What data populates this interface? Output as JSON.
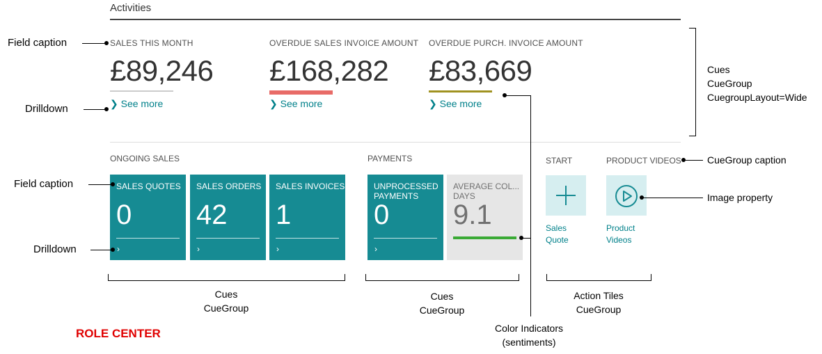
{
  "activities": {
    "title": "Activities",
    "wide_cues": [
      {
        "caption": "SALES THIS MONTH",
        "value": "£89,246",
        "link": "See more",
        "indicator_color": "#cccccc"
      },
      {
        "caption": "OVERDUE SALES INVOICE AMOUNT",
        "value": "£168,282",
        "link": "See more",
        "indicator_color": "#e86b67"
      },
      {
        "caption": "OVERDUE PURCH. INVOICE AMOUNT",
        "value": "£83,669",
        "link": "See more",
        "indicator_color": "#a09221"
      }
    ]
  },
  "ongoing_sales": {
    "caption": "ONGOING SALES",
    "tiles": [
      {
        "caption": "SALES QUOTES",
        "value": "0"
      },
      {
        "caption": "SALES ORDERS",
        "value": "42"
      },
      {
        "caption": "SALES INVOICES",
        "value": "1"
      }
    ]
  },
  "payments": {
    "caption": "PAYMENTS",
    "tiles": [
      {
        "caption_line1": "UNPROCESSED",
        "caption_line2": "PAYMENTS",
        "value": "0"
      },
      {
        "caption_line1": "AVERAGE COL...",
        "caption_line2": "DAYS",
        "value": "9.1",
        "indicator_color": "#3aaa35"
      }
    ]
  },
  "start": {
    "caption": "START",
    "action": {
      "label_line1": "Sales",
      "label_line2": "Quote",
      "icon": "plus-icon"
    }
  },
  "product_videos": {
    "caption": "PRODUCT VIDEOS",
    "action": {
      "label_line1": "Product",
      "label_line2": "Videos",
      "icon": "play-icon"
    }
  },
  "annotations": {
    "field_caption_top": "Field caption",
    "drilldown_top": "Drilldown",
    "field_caption_bottom": "Field caption",
    "drilldown_bottom": "Drilldown",
    "cues_wide_line1": "Cues",
    "cues_wide_line2": "CueGroup",
    "cues_wide_line3": "CuegroupLayout=Wide",
    "cuegroup_caption": "CueGroup caption",
    "image_property": "Image property",
    "cues_group1_line1": "Cues",
    "cues_group1_line2": "CueGroup",
    "cues_group2_line1": "Cues",
    "cues_group2_line2": "CueGroup",
    "action_tiles_line1": "Action Tiles",
    "action_tiles_line2": "CueGroup",
    "color_indicators_line1": "Color Indicators",
    "color_indicators_line2": "(sentiments)",
    "role_center": "ROLE CENTER"
  },
  "colors": {
    "tile_teal": "#168b93",
    "link_teal": "#00808a",
    "tile_grey": "#e6e6e6",
    "action_tile_bg": "#d6eef0",
    "role_center_red": "#e00000"
  }
}
